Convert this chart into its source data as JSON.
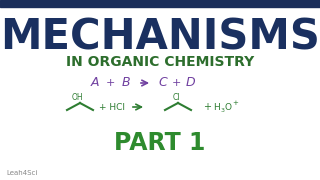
{
  "bg_color": "#ffffff",
  "border_top_color": "#1a2e5a",
  "title_text": "MECHANISMS",
  "title_color": "#1a3060",
  "subtitle_text": "IN ORGANIC CHEMISTRY",
  "subtitle_color": "#2d6e2d",
  "part_text": "PART 1",
  "part_color": "#2e8b2e",
  "eq_abc_color": "#7040a0",
  "chem_color": "#2e7d32",
  "watermark": "Leah4Sci",
  "watermark_color": "#888888",
  "figsize": [
    3.2,
    1.8
  ],
  "dpi": 100
}
